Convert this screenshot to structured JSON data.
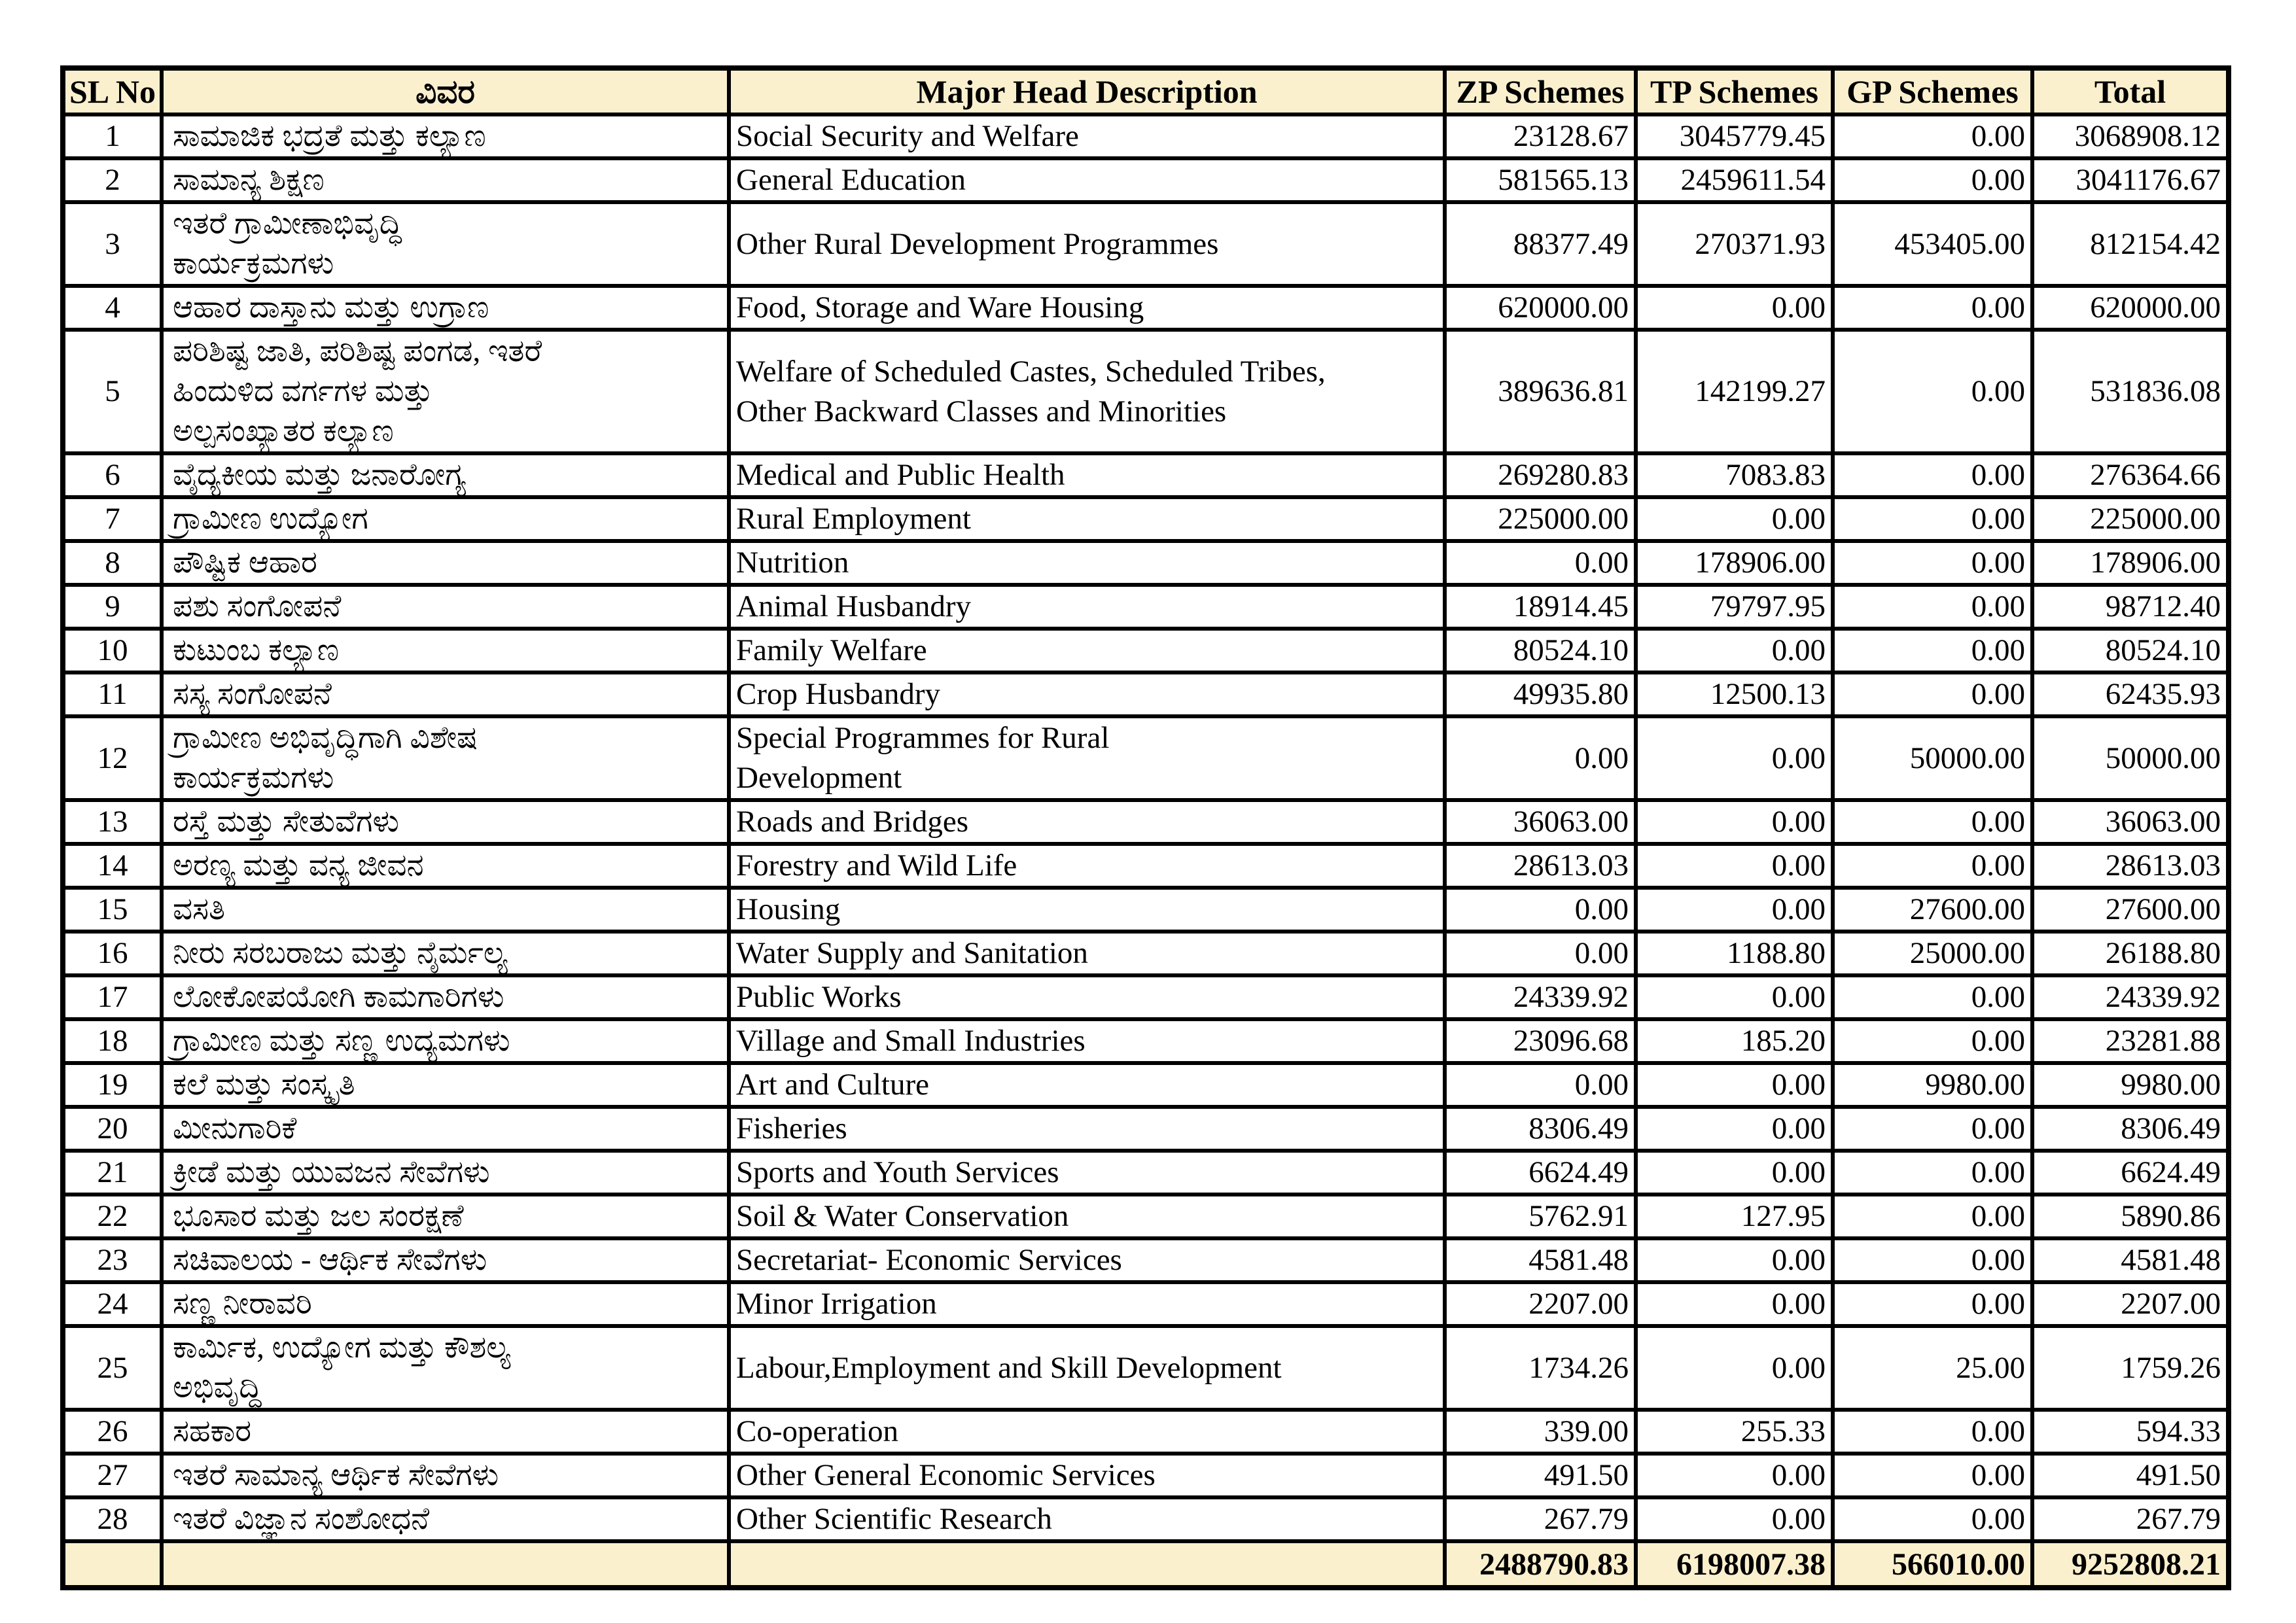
{
  "colors": {
    "header_bg": "#FBF0CE",
    "border": "#000000",
    "text": "#000000",
    "page_bg": "#FFFFFF"
  },
  "table": {
    "columns": [
      "SL No",
      "ವಿವರ",
      "Major Head Description",
      "ZP Schemes",
      "TP Schemes",
      "GP Schemes",
      "Total"
    ],
    "rows": [
      {
        "sl": "1",
        "kannada": "ಸಾಮಾಜಿಕ ಭದ್ರತೆ ಮತ್ತು ಕಲ್ಯಾಣ",
        "english": "Social Security and Welfare",
        "zp": "23128.67",
        "tp": "3045779.45",
        "gp": "0.00",
        "total": "3068908.12"
      },
      {
        "sl": "2",
        "kannada": "ಸಾಮಾನ್ಯ ಶಿಕ್ಷಣ",
        "english": "General Education",
        "zp": "581565.13",
        "tp": "2459611.54",
        "gp": "0.00",
        "total": "3041176.67"
      },
      {
        "sl": "3",
        "kannada": "ಇತರೆ ಗ್ರಾಮೀಣಾಭಿವೃದ್ಧಿ\nಕಾರ್ಯಕ್ರಮಗಳು",
        "english": "Other Rural Development Programmes",
        "zp": "88377.49",
        "tp": "270371.93",
        "gp": "453405.00",
        "total": "812154.42"
      },
      {
        "sl": "4",
        "kannada": "ಆಹಾರ ದಾಸ್ತಾನು ಮತ್ತು ಉಗ್ರಾಣ",
        "english": "Food, Storage and Ware Housing",
        "zp": "620000.00",
        "tp": "0.00",
        "gp": "0.00",
        "total": "620000.00"
      },
      {
        "sl": "5",
        "kannada": "ಪರಿಶಿಷ್ಟ ಜಾತಿ, ಪರಿಶಿಷ್ಟ ಪಂಗಡ, ಇತರೆ\nಹಿಂದುಳಿದ ವರ್ಗಗಳ ಮತ್ತು\nಅಲ್ಪಸಂಖ್ಯಾತರ ಕಲ್ಯಾಣ",
        "english": "Welfare of Scheduled Castes, Scheduled Tribes,\nOther Backward Classes and Minorities",
        "zp": "389636.81",
        "tp": "142199.27",
        "gp": "0.00",
        "total": "531836.08"
      },
      {
        "sl": "6",
        "kannada": "ವೈದ್ಯಕೀಯ ಮತ್ತು ಜನಾರೋಗ್ಯ",
        "english": "Medical and Public Health",
        "zp": "269280.83",
        "tp": "7083.83",
        "gp": "0.00",
        "total": "276364.66"
      },
      {
        "sl": "7",
        "kannada": "ಗ್ರಾಮೀಣ ಉದ್ಯೋಗ",
        "english": "Rural Employment",
        "zp": "225000.00",
        "tp": "0.00",
        "gp": "0.00",
        "total": "225000.00"
      },
      {
        "sl": "8",
        "kannada": "ಪೌಷ್ಟಿಕ ಆಹಾರ",
        "english": "Nutrition",
        "zp": "0.00",
        "tp": "178906.00",
        "gp": "0.00",
        "total": "178906.00"
      },
      {
        "sl": "9",
        "kannada": "ಪಶು ಸಂಗೋಪನೆ",
        "english": "Animal Husbandry",
        "zp": "18914.45",
        "tp": "79797.95",
        "gp": "0.00",
        "total": "98712.40"
      },
      {
        "sl": "10",
        "kannada": "ಕುಟುಂಬ ಕಲ್ಯಾಣ",
        "english": "Family Welfare",
        "zp": "80524.10",
        "tp": "0.00",
        "gp": "0.00",
        "total": "80524.10"
      },
      {
        "sl": "11",
        "kannada": "ಸಸ್ಯ ಸಂಗೋಪನೆ",
        "english": "Crop Husbandry",
        "zp": "49935.80",
        "tp": "12500.13",
        "gp": "0.00",
        "total": "62435.93"
      },
      {
        "sl": "12",
        "kannada": "ಗ್ರಾಮೀಣ ಅಭಿವೃದ್ಧಿಗಾಗಿ ವಿಶೇಷ\nಕಾರ್ಯಕ್ರಮಗಳು",
        "english": "Special Programmes for Rural\nDevelopment",
        "zp": "0.00",
        "tp": "0.00",
        "gp": "50000.00",
        "total": "50000.00"
      },
      {
        "sl": "13",
        "kannada": "ರಸ್ತೆ ಮತ್ತು ಸೇತುವೆಗಳು",
        "english": "Roads and Bridges",
        "zp": "36063.00",
        "tp": "0.00",
        "gp": "0.00",
        "total": "36063.00"
      },
      {
        "sl": "14",
        "kannada": "ಅರಣ್ಯ ಮತ್ತು ವನ್ಯ ಜೀವನ",
        "english": "Forestry and Wild Life",
        "zp": "28613.03",
        "tp": "0.00",
        "gp": "0.00",
        "total": "28613.03"
      },
      {
        "sl": "15",
        "kannada": "ವಸತಿ",
        "english": "Housing",
        "zp": "0.00",
        "tp": "0.00",
        "gp": "27600.00",
        "total": "27600.00"
      },
      {
        "sl": "16",
        "kannada": "ನೀರು ಸರಬರಾಜು ಮತ್ತು ನೈರ್ಮಲ್ಯ",
        "english": "Water Supply and Sanitation",
        "zp": "0.00",
        "tp": "1188.80",
        "gp": "25000.00",
        "total": "26188.80"
      },
      {
        "sl": "17",
        "kannada": "ಲೋಕೋಪಯೋಗಿ ಕಾಮಗಾರಿಗಳು",
        "english": "Public Works",
        "zp": "24339.92",
        "tp": "0.00",
        "gp": "0.00",
        "total": "24339.92"
      },
      {
        "sl": "18",
        "kannada": "ಗ್ರಾಮೀಣ ಮತ್ತು ಸಣ್ಣ ಉದ್ಯಮಗಳು",
        "english": "Village and Small Industries",
        "zp": "23096.68",
        "tp": "185.20",
        "gp": "0.00",
        "total": "23281.88"
      },
      {
        "sl": "19",
        "kannada": "ಕಲೆ ಮತ್ತು ಸಂಸ್ಕೃತಿ",
        "english": "Art and Culture",
        "zp": "0.00",
        "tp": "0.00",
        "gp": "9980.00",
        "total": "9980.00"
      },
      {
        "sl": "20",
        "kannada": "ಮೀನುಗಾರಿಕೆ",
        "english": "Fisheries",
        "zp": "8306.49",
        "tp": "0.00",
        "gp": "0.00",
        "total": "8306.49"
      },
      {
        "sl": "21",
        "kannada": "ಕ್ರೀಡೆ ಮತ್ತು ಯುವಜನ ಸೇವೆಗಳು",
        "english": "Sports and Youth Services",
        "zp": "6624.49",
        "tp": "0.00",
        "gp": "0.00",
        "total": "6624.49"
      },
      {
        "sl": "22",
        "kannada": "ಭೂಸಾರ ಮತ್ತು ಜಲ ಸಂರಕ್ಷಣೆ",
        "english": "Soil & Water Conservation",
        "zp": "5762.91",
        "tp": "127.95",
        "gp": "0.00",
        "total": "5890.86"
      },
      {
        "sl": "23",
        "kannada": "ಸಚಿವಾಲಯ - ಆರ್ಥಿಕ ಸೇವೆಗಳು",
        "english": "Secretariat- Economic Services",
        "zp": "4581.48",
        "tp": "0.00",
        "gp": "0.00",
        "total": "4581.48"
      },
      {
        "sl": "24",
        "kannada": "ಸಣ್ಣ ನೀರಾವರಿ",
        "english": "Minor Irrigation",
        "zp": "2207.00",
        "tp": "0.00",
        "gp": "0.00",
        "total": "2207.00"
      },
      {
        "sl": "25",
        "kannada": "ಕಾರ್ಮಿಕ, ಉದ್ಯೋಗ ಮತ್ತು ಕೌಶಲ್ಯ\nಅಭಿವೃದ್ಧಿ",
        "english": "Labour,Employment and Skill Development",
        "zp": "1734.26",
        "tp": "0.00",
        "gp": "25.00",
        "total": "1759.26"
      },
      {
        "sl": "26",
        "kannada": "ಸಹಕಾರ",
        "english": "Co-operation",
        "zp": "339.00",
        "tp": "255.33",
        "gp": "0.00",
        "total": "594.33"
      },
      {
        "sl": "27",
        "kannada": "ಇತರೆ ಸಾಮಾನ್ಯ ಆರ್ಥಿಕ ಸೇವೆಗಳು",
        "english": "Other General Economic Services",
        "zp": "491.50",
        "tp": "0.00",
        "gp": "0.00",
        "total": "491.50"
      },
      {
        "sl": "28",
        "kannada": "ಇತರೆ ವಿಜ್ಞಾನ ಸಂಶೋಧನೆ",
        "english": "Other Scientific Research",
        "zp": "267.79",
        "tp": "0.00",
        "gp": "0.00",
        "total": "267.79"
      }
    ],
    "footer": {
      "zp": "2488790.83",
      "tp": "6198007.38",
      "gp": "566010.00",
      "total": "9252808.21"
    }
  }
}
